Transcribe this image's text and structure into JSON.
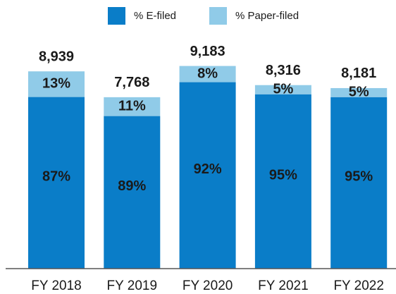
{
  "chart_data": {
    "type": "stacked_bar",
    "categories": [
      "FY 2018",
      "FY 2019",
      "FY 2020",
      "FY 2021",
      "FY 2022"
    ],
    "series": [
      {
        "name": "% E-filed",
        "color": "#0a7dc8",
        "values": [
          87,
          89,
          92,
          95,
          95
        ],
        "value_labels": [
          "87%",
          "89%",
          "92%",
          "95%",
          "95%"
        ]
      },
      {
        "name": "% Paper-filed",
        "color": "#90cbe8",
        "values": [
          13,
          11,
          8,
          5,
          5
        ],
        "value_labels": [
          "13%",
          "11%",
          "8%",
          "5%",
          "5%"
        ]
      }
    ],
    "totals": {
      "values": [
        8939,
        7768,
        9183,
        8316,
        8181
      ],
      "value_labels": [
        "8,939",
        "7,768",
        "9,183",
        "8,316",
        "8,181"
      ]
    },
    "legend": "top"
  }
}
